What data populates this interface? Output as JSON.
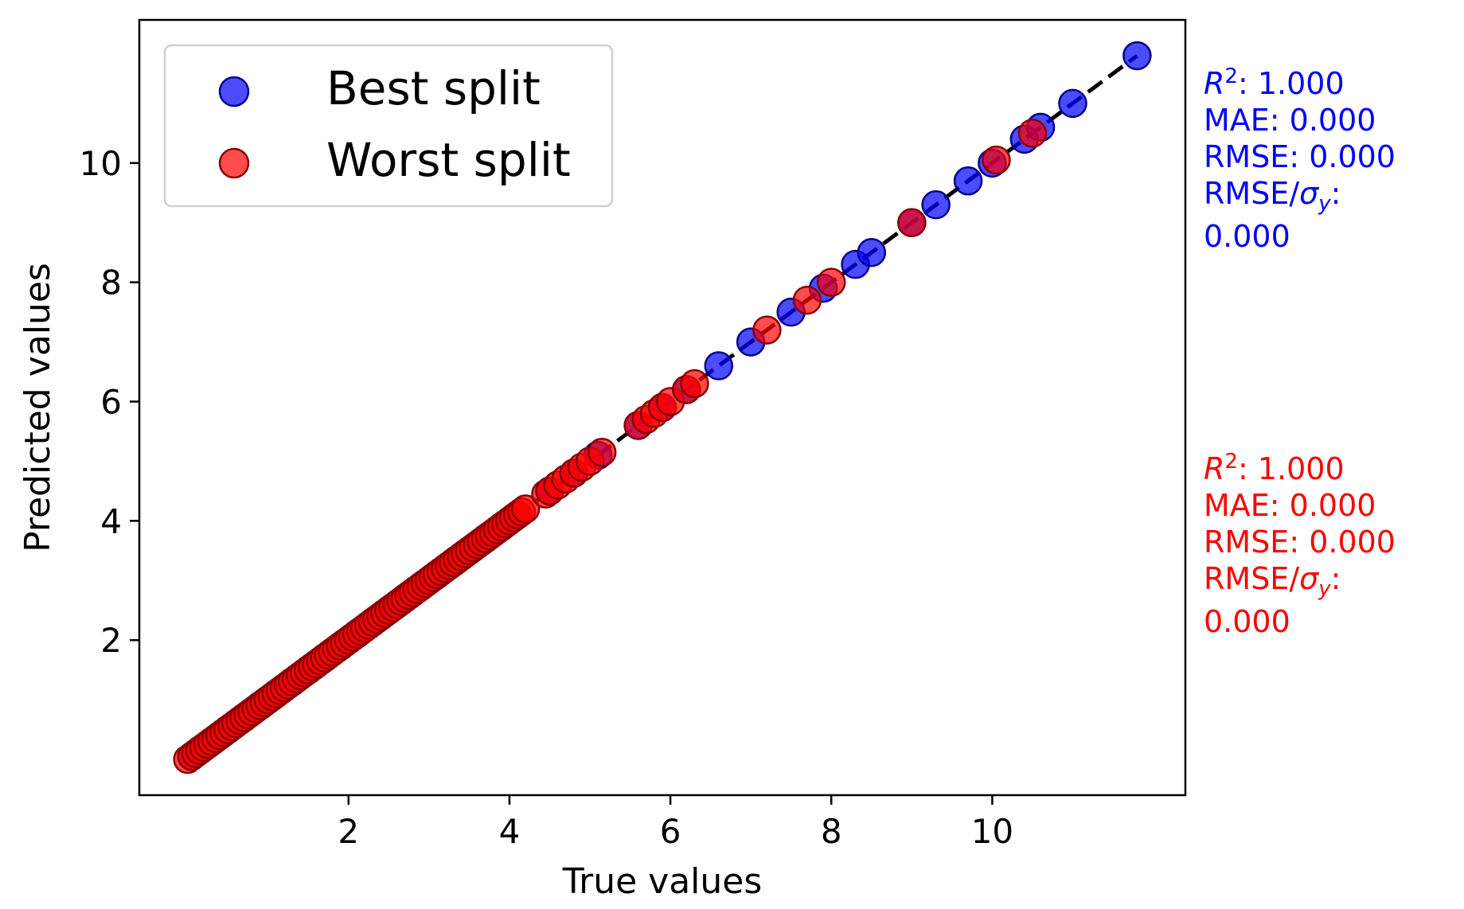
{
  "chart_data": {
    "type": "scatter",
    "xlabel": "True values",
    "ylabel": "Predicted values",
    "xlim": [
      -0.6,
      12.4
    ],
    "ylim": [
      -0.6,
      12.4
    ],
    "x_ticks": [
      2,
      4,
      6,
      8,
      10
    ],
    "y_ticks": [
      2,
      4,
      6,
      8,
      10
    ],
    "grid": false,
    "legend_position": "top-left",
    "reference_line": {
      "style": "dashed",
      "color": "#000000",
      "from": [
        0,
        0
      ],
      "to": [
        11.8,
        11.8
      ]
    },
    "series": [
      {
        "name": "Best split",
        "color": "#0000ff",
        "points": [
          [
            0.05,
            0.05
          ],
          [
            0.15,
            0.15
          ],
          [
            0.3,
            0.3
          ],
          [
            0.5,
            0.5
          ],
          [
            0.7,
            0.7
          ],
          [
            0.9,
            0.9
          ],
          [
            1.1,
            1.1
          ],
          [
            1.3,
            1.3
          ],
          [
            1.5,
            1.5
          ],
          [
            1.7,
            1.7
          ],
          [
            1.9,
            1.9
          ],
          [
            2.1,
            2.1
          ],
          [
            2.3,
            2.3
          ],
          [
            2.5,
            2.5
          ],
          [
            2.7,
            2.7
          ],
          [
            2.9,
            2.9
          ],
          [
            3.1,
            3.1
          ],
          [
            3.3,
            3.3
          ],
          [
            3.5,
            3.5
          ],
          [
            3.7,
            3.7
          ],
          [
            3.9,
            3.9
          ],
          [
            4.1,
            4.1
          ],
          [
            4.5,
            4.5
          ],
          [
            4.8,
            4.8
          ],
          [
            5.1,
            5.1
          ],
          [
            5.6,
            5.6
          ],
          [
            5.9,
            5.9
          ],
          [
            6.2,
            6.2
          ],
          [
            6.6,
            6.6
          ],
          [
            7.0,
            7.0
          ],
          [
            7.5,
            7.5
          ],
          [
            7.9,
            7.9
          ],
          [
            8.3,
            8.3
          ],
          [
            8.5,
            8.5
          ],
          [
            9.0,
            9.0
          ],
          [
            9.3,
            9.3
          ],
          [
            9.7,
            9.7
          ],
          [
            10.0,
            10.0
          ],
          [
            10.4,
            10.4
          ],
          [
            10.6,
            10.6
          ],
          [
            11.0,
            11.0
          ],
          [
            11.8,
            11.8
          ]
        ]
      },
      {
        "name": "Worst split",
        "color": "#ff0000",
        "points": [
          [
            0.0,
            0.0
          ],
          [
            0.05,
            0.05
          ],
          [
            0.1,
            0.1
          ],
          [
            0.15,
            0.15
          ],
          [
            0.2,
            0.2
          ],
          [
            0.25,
            0.25
          ],
          [
            0.3,
            0.3
          ],
          [
            0.35,
            0.35
          ],
          [
            0.4,
            0.4
          ],
          [
            0.45,
            0.45
          ],
          [
            0.5,
            0.5
          ],
          [
            0.55,
            0.55
          ],
          [
            0.6,
            0.6
          ],
          [
            0.65,
            0.65
          ],
          [
            0.7,
            0.7
          ],
          [
            0.75,
            0.75
          ],
          [
            0.8,
            0.8
          ],
          [
            0.85,
            0.85
          ],
          [
            0.9,
            0.9
          ],
          [
            0.95,
            0.95
          ],
          [
            1.0,
            1.0
          ],
          [
            1.05,
            1.05
          ],
          [
            1.1,
            1.1
          ],
          [
            1.15,
            1.15
          ],
          [
            1.2,
            1.2
          ],
          [
            1.25,
            1.25
          ],
          [
            1.3,
            1.3
          ],
          [
            1.35,
            1.35
          ],
          [
            1.4,
            1.4
          ],
          [
            1.45,
            1.45
          ],
          [
            1.5,
            1.5
          ],
          [
            1.55,
            1.55
          ],
          [
            1.6,
            1.6
          ],
          [
            1.65,
            1.65
          ],
          [
            1.7,
            1.7
          ],
          [
            1.75,
            1.75
          ],
          [
            1.8,
            1.8
          ],
          [
            1.85,
            1.85
          ],
          [
            1.9,
            1.9
          ],
          [
            1.95,
            1.95
          ],
          [
            2.0,
            2.0
          ],
          [
            2.05,
            2.05
          ],
          [
            2.1,
            2.1
          ],
          [
            2.15,
            2.15
          ],
          [
            2.2,
            2.2
          ],
          [
            2.25,
            2.25
          ],
          [
            2.3,
            2.3
          ],
          [
            2.35,
            2.35
          ],
          [
            2.4,
            2.4
          ],
          [
            2.45,
            2.45
          ],
          [
            2.5,
            2.5
          ],
          [
            2.55,
            2.55
          ],
          [
            2.6,
            2.6
          ],
          [
            2.65,
            2.65
          ],
          [
            2.7,
            2.7
          ],
          [
            2.75,
            2.75
          ],
          [
            2.8,
            2.8
          ],
          [
            2.85,
            2.85
          ],
          [
            2.9,
            2.9
          ],
          [
            2.95,
            2.95
          ],
          [
            3.0,
            3.0
          ],
          [
            3.05,
            3.05
          ],
          [
            3.1,
            3.1
          ],
          [
            3.15,
            3.15
          ],
          [
            3.2,
            3.2
          ],
          [
            3.25,
            3.25
          ],
          [
            3.3,
            3.3
          ],
          [
            3.35,
            3.35
          ],
          [
            3.4,
            3.4
          ],
          [
            3.45,
            3.45
          ],
          [
            3.5,
            3.5
          ],
          [
            3.55,
            3.55
          ],
          [
            3.6,
            3.6
          ],
          [
            3.65,
            3.65
          ],
          [
            3.7,
            3.7
          ],
          [
            3.75,
            3.75
          ],
          [
            3.8,
            3.8
          ],
          [
            3.85,
            3.85
          ],
          [
            3.9,
            3.9
          ],
          [
            3.95,
            3.95
          ],
          [
            4.0,
            4.0
          ],
          [
            4.05,
            4.05
          ],
          [
            4.1,
            4.1
          ],
          [
            4.15,
            4.15
          ],
          [
            4.2,
            4.2
          ],
          [
            4.45,
            4.45
          ],
          [
            4.5,
            4.5
          ],
          [
            4.6,
            4.6
          ],
          [
            4.7,
            4.7
          ],
          [
            4.8,
            4.8
          ],
          [
            4.9,
            4.9
          ],
          [
            5.0,
            5.0
          ],
          [
            5.15,
            5.15
          ],
          [
            5.6,
            5.6
          ],
          [
            5.7,
            5.7
          ],
          [
            5.8,
            5.8
          ],
          [
            5.9,
            5.9
          ],
          [
            6.0,
            6.0
          ],
          [
            6.2,
            6.2
          ],
          [
            6.3,
            6.3
          ],
          [
            7.2,
            7.2
          ],
          [
            7.7,
            7.7
          ],
          [
            8.0,
            8.0
          ],
          [
            9.0,
            9.0
          ],
          [
            10.05,
            10.05
          ],
          [
            10.5,
            10.5
          ]
        ]
      }
    ],
    "annotations": [
      {
        "series": "Best split",
        "color": "#0000ff",
        "r2": "1.000",
        "mae": "MAE: 0.000",
        "rmse": "RMSE: 0.000",
        "rmse_sigma_label": ":",
        "rmse_sigma_value": "0.000"
      },
      {
        "series": "Worst split",
        "color": "#ff0000",
        "r2": "1.000",
        "mae": "MAE: 0.000",
        "rmse": "RMSE: 0.000",
        "rmse_sigma_label": ":",
        "rmse_sigma_value": "0.000"
      }
    ]
  }
}
